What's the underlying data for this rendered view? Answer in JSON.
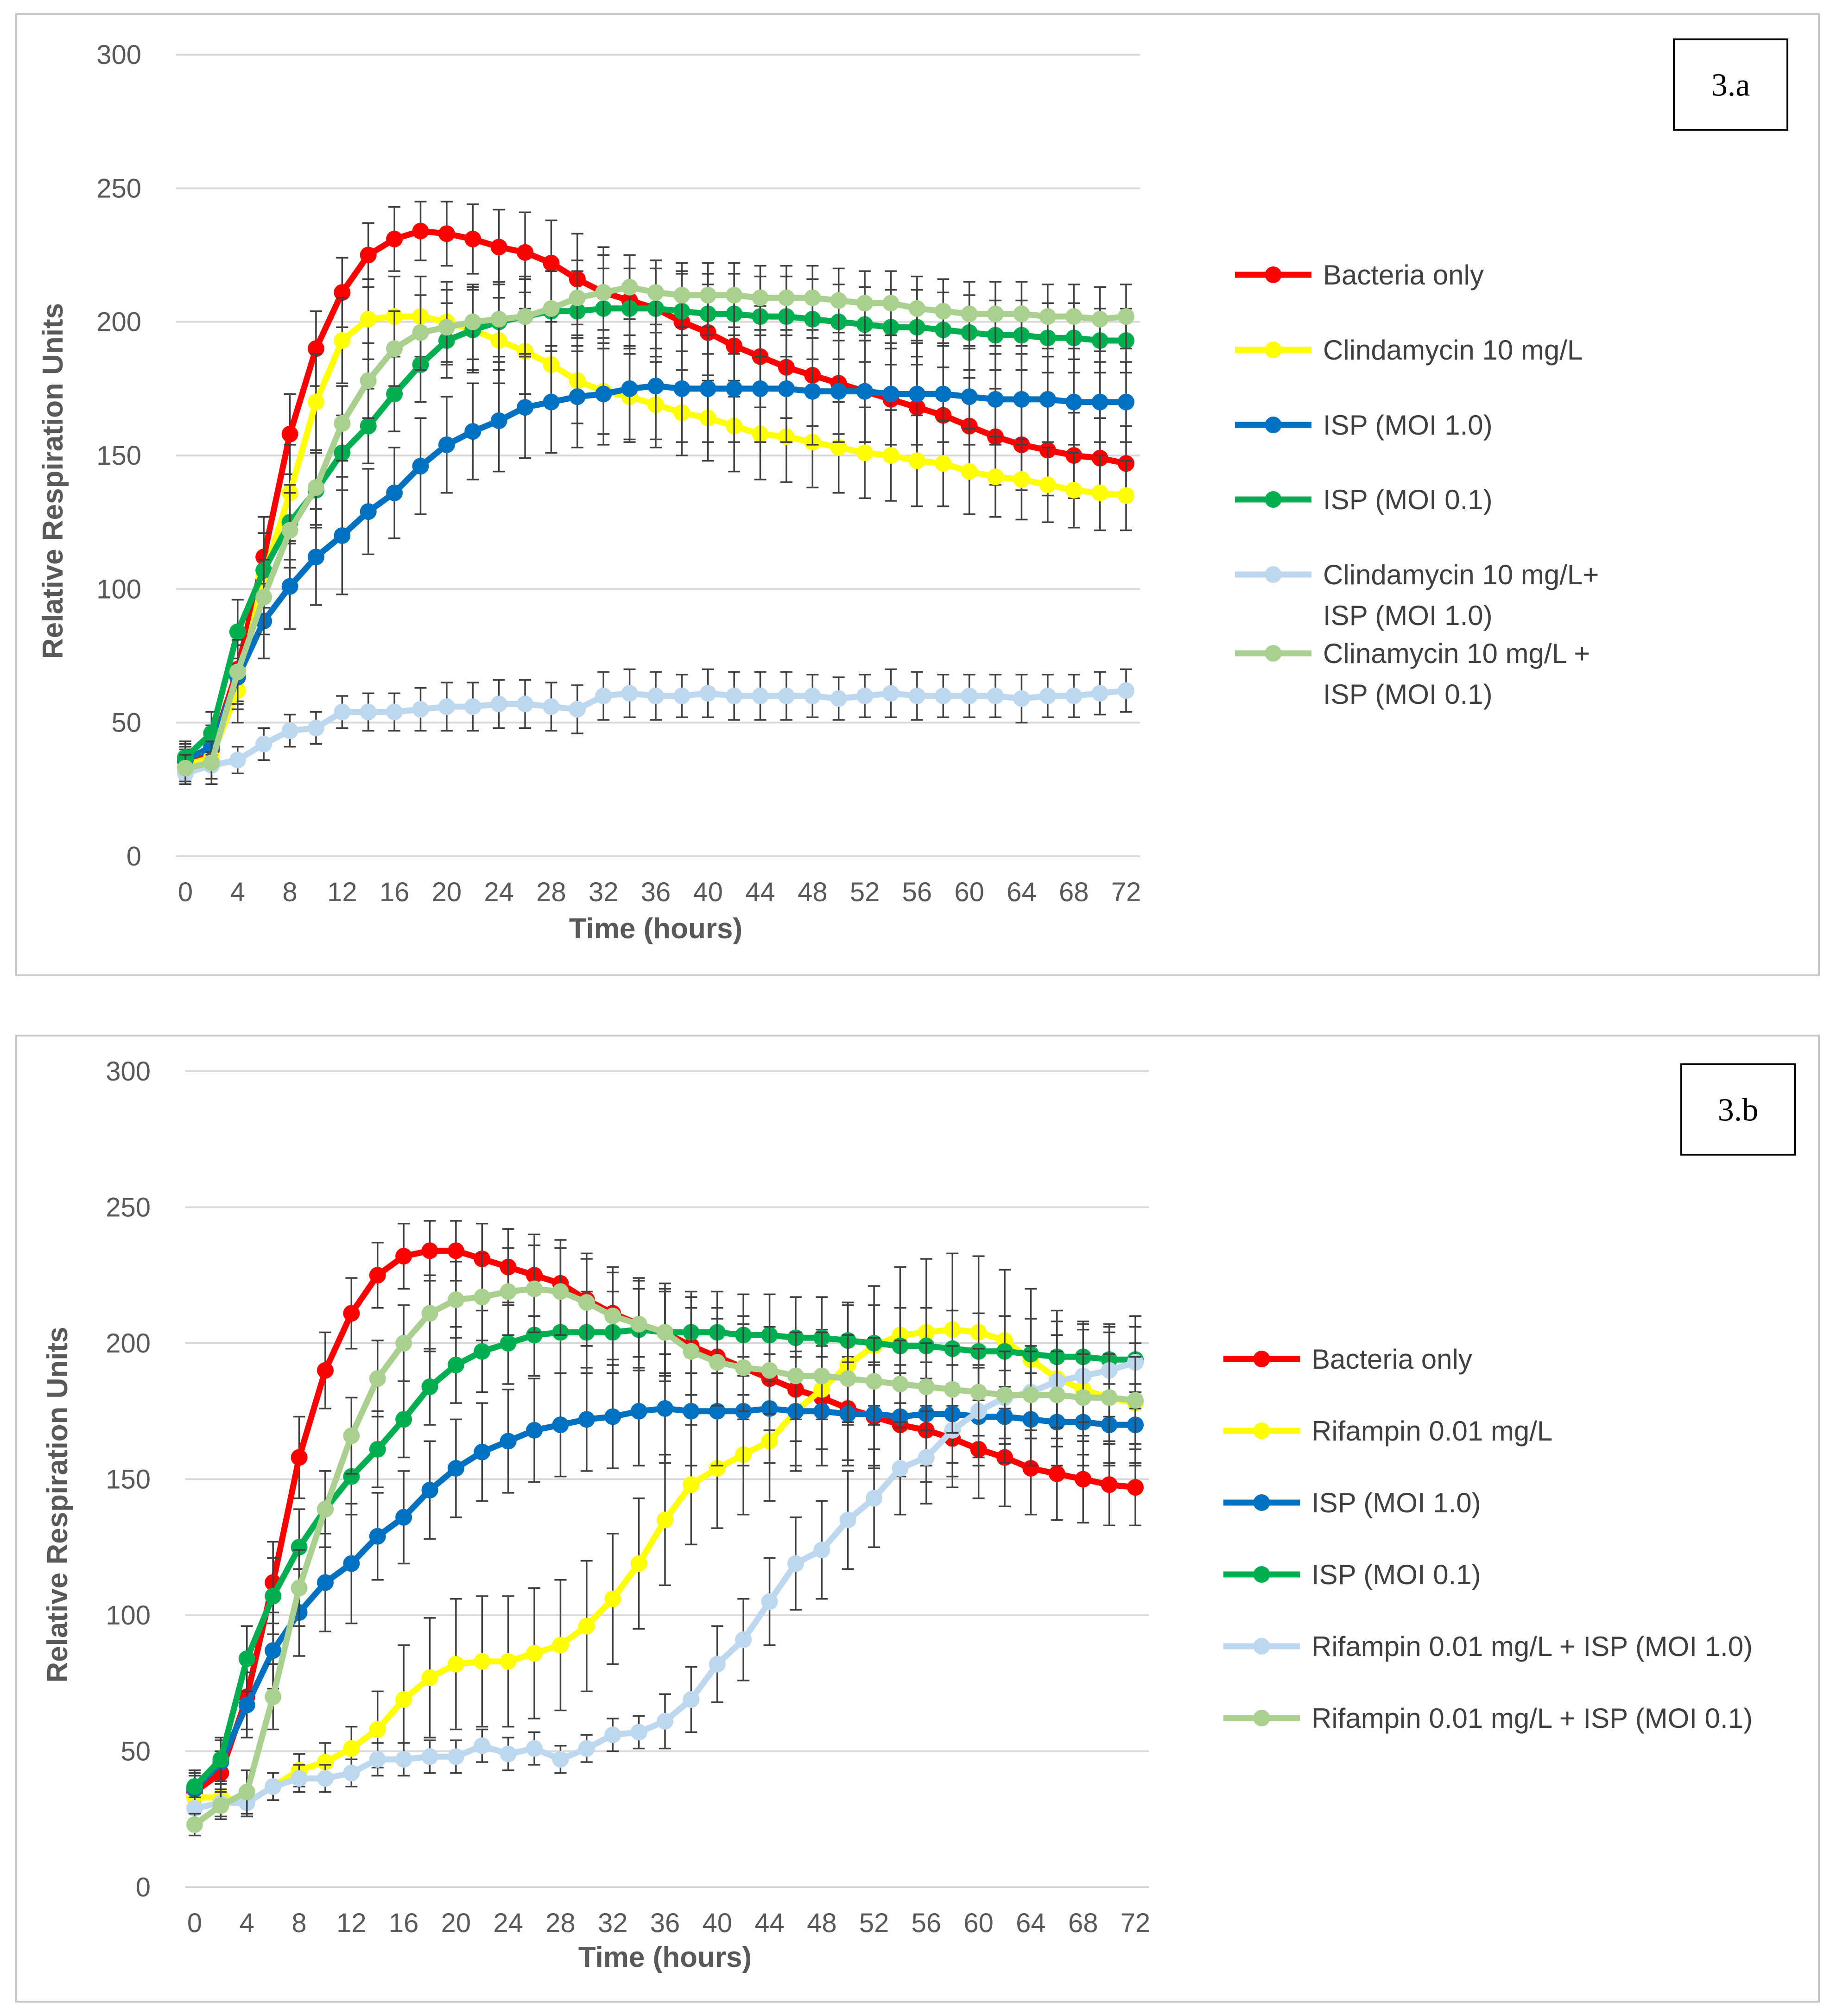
{
  "chart_data": [
    {
      "type": "line",
      "panel_label": "3.a",
      "xlabel": "Time (hours)",
      "ylabel": "Relative Respiration Units",
      "ylim": [
        0,
        300
      ],
      "yticks": [
        0,
        50,
        100,
        150,
        200,
        250,
        300
      ],
      "xticks": [
        0,
        4,
        8,
        12,
        16,
        20,
        24,
        28,
        32,
        36,
        40,
        44,
        48,
        52,
        56,
        60,
        64,
        68,
        72
      ],
      "xlim": [
        0,
        72
      ],
      "grid": "horizontal",
      "legend": "right",
      "x": [
        0,
        2,
        4,
        6,
        8,
        10,
        12,
        14,
        16,
        18,
        20,
        22,
        24,
        26,
        28,
        30,
        32,
        34,
        36,
        38,
        40,
        42,
        44,
        46,
        48,
        50,
        52,
        54,
        56,
        58,
        60,
        62,
        64,
        66,
        68,
        70,
        72
      ],
      "series": [
        {
          "name": "Bacteria only",
          "color": "#ff0000",
          "values": [
            35,
            40,
            70,
            112,
            158,
            190,
            211,
            225,
            231,
            234,
            233,
            231,
            228,
            226,
            222,
            216,
            211,
            208,
            205,
            200,
            196,
            191,
            187,
            183,
            180,
            177,
            174,
            171,
            168,
            165,
            161,
            157,
            154,
            152,
            150,
            149,
            147
          ],
          "errors": [
            6,
            8,
            12,
            15,
            15,
            14,
            13,
            12,
            12,
            11,
            12,
            13,
            14,
            15,
            16,
            17,
            17,
            17,
            18,
            18,
            18,
            19,
            19,
            19,
            19,
            19,
            19,
            19,
            19,
            18,
            18,
            18,
            17,
            17,
            16,
            15,
            14
          ]
        },
        {
          "name": "Clindamycin 10 mg/L",
          "color": "#ffff00",
          "values": [
            34,
            37,
            62,
            105,
            136,
            170,
            193,
            201,
            202,
            202,
            200,
            197,
            193,
            189,
            184,
            178,
            174,
            172,
            169,
            166,
            164,
            161,
            158,
            157,
            155,
            153,
            151,
            150,
            148,
            147,
            144,
            142,
            141,
            139,
            137,
            136,
            135
          ],
          "errors": [
            6,
            8,
            12,
            16,
            18,
            18,
            16,
            15,
            15,
            15,
            15,
            16,
            16,
            16,
            16,
            16,
            16,
            16,
            16,
            16,
            16,
            17,
            17,
            17,
            17,
            17,
            17,
            17,
            17,
            16,
            16,
            15,
            15,
            14,
            14,
            14,
            13
          ]
        },
        {
          "name": "ISP (MOI 1.0)",
          "color": "#0070c0",
          "values": [
            36,
            41,
            67,
            88,
            101,
            112,
            120,
            129,
            136,
            146,
            154,
            159,
            163,
            168,
            170,
            172,
            173,
            175,
            176,
            175,
            175,
            175,
            175,
            175,
            174,
            174,
            174,
            173,
            173,
            173,
            172,
            171,
            171,
            171,
            170,
            170,
            170
          ],
          "errors": [
            6,
            8,
            12,
            14,
            16,
            18,
            22,
            16,
            17,
            18,
            18,
            18,
            19,
            19,
            19,
            19,
            19,
            20,
            20,
            20,
            20,
            20,
            20,
            20,
            20,
            19,
            19,
            19,
            19,
            18,
            18,
            17,
            17,
            16,
            16,
            15,
            15
          ]
        },
        {
          "name": "ISP (MOI 0.1)",
          "color": "#00b050",
          "values": [
            37,
            46,
            84,
            107,
            125,
            137,
            151,
            161,
            173,
            184,
            193,
            197,
            200,
            202,
            204,
            204,
            205,
            205,
            205,
            204,
            203,
            203,
            202,
            202,
            201,
            200,
            199,
            198,
            198,
            197,
            196,
            195,
            195,
            194,
            194,
            193,
            193
          ],
          "errors": [
            6,
            8,
            12,
            14,
            14,
            14,
            14,
            14,
            14,
            14,
            14,
            15,
            15,
            15,
            15,
            15,
            15,
            15,
            15,
            15,
            15,
            15,
            15,
            15,
            15,
            14,
            14,
            14,
            14,
            14,
            14,
            13,
            13,
            13,
            13,
            12,
            12
          ]
        },
        {
          "name": "Clindamycin 10 mg/L+ ISP (MOI 1.0)",
          "color": "#bdd7ee",
          "values": [
            31,
            34,
            36,
            42,
            47,
            48,
            54,
            54,
            54,
            55,
            56,
            56,
            57,
            57,
            56,
            55,
            60,
            61,
            60,
            60,
            61,
            60,
            60,
            60,
            60,
            59,
            60,
            61,
            60,
            60,
            60,
            60,
            59,
            60,
            60,
            61,
            62
          ],
          "errors": [
            4,
            5,
            5,
            6,
            6,
            6,
            6,
            7,
            7,
            8,
            9,
            9,
            9,
            9,
            9,
            9,
            9,
            9,
            9,
            8,
            9,
            9,
            9,
            9,
            8,
            8,
            8,
            9,
            9,
            8,
            8,
            8,
            9,
            8,
            8,
            8,
            8
          ]
        },
        {
          "name": "Clinamycin 10 mg/L + ISP (MOI 0.1)",
          "color": "#a9d08e",
          "values": [
            33,
            35,
            69,
            97,
            122,
            138,
            162,
            178,
            190,
            196,
            198,
            200,
            201,
            202,
            205,
            209,
            211,
            213,
            211,
            210,
            210,
            210,
            209,
            209,
            209,
            208,
            207,
            207,
            205,
            204,
            203,
            203,
            203,
            202,
            202,
            201,
            202
          ],
          "errors": [
            5,
            8,
            12,
            14,
            14,
            14,
            14,
            14,
            14,
            14,
            14,
            14,
            14,
            14,
            14,
            14,
            14,
            12,
            12,
            12,
            12,
            12,
            12,
            12,
            12,
            12,
            12,
            12,
            12,
            12,
            12,
            12,
            12,
            12,
            12,
            12,
            12
          ]
        }
      ]
    },
    {
      "type": "line",
      "panel_label": "3.b",
      "xlabel": "Time (hours)",
      "ylabel": "Relative Respiration Units",
      "ylim": [
        0,
        300
      ],
      "yticks": [
        0,
        50,
        100,
        150,
        200,
        250,
        300
      ],
      "xticks": [
        0,
        4,
        8,
        12,
        16,
        20,
        24,
        28,
        32,
        36,
        40,
        44,
        48,
        52,
        56,
        60,
        64,
        68,
        72
      ],
      "xlim": [
        0,
        72
      ],
      "grid": "horizontal",
      "legend": "right",
      "x": [
        0,
        2,
        4,
        6,
        8,
        10,
        12,
        14,
        16,
        18,
        20,
        22,
        24,
        26,
        28,
        30,
        32,
        34,
        36,
        38,
        40,
        42,
        44,
        46,
        48,
        50,
        52,
        54,
        56,
        58,
        60,
        62,
        64,
        66,
        68,
        70,
        72
      ],
      "series": [
        {
          "name": "Bacteria only",
          "color": "#ff0000",
          "values": [
            35,
            42,
            70,
            112,
            158,
            190,
            211,
            225,
            232,
            234,
            234,
            231,
            228,
            225,
            222,
            216,
            211,
            207,
            204,
            199,
            195,
            191,
            187,
            183,
            180,
            176,
            173,
            170,
            168,
            165,
            161,
            158,
            154,
            152,
            150,
            148,
            147
          ],
          "errors": [
            6,
            8,
            12,
            15,
            15,
            14,
            13,
            12,
            12,
            11,
            11,
            13,
            14,
            15,
            16,
            17,
            17,
            17,
            18,
            18,
            18,
            19,
            19,
            19,
            19,
            19,
            19,
            19,
            19,
            18,
            18,
            18,
            17,
            17,
            16,
            15,
            14
          ]
        },
        {
          "name": "Rifampin 0.01 mg/L",
          "color": "#ffff00",
          "values": [
            33,
            33,
            31,
            37,
            43,
            46,
            51,
            58,
            69,
            77,
            82,
            83,
            83,
            86,
            89,
            96,
            106,
            119,
            135,
            148,
            154,
            159,
            164,
            175,
            183,
            192,
            199,
            203,
            204,
            205,
            204,
            201,
            194,
            187,
            183,
            180,
            178
          ],
          "errors": [
            4,
            5,
            5,
            5,
            6,
            7,
            8,
            14,
            20,
            22,
            24,
            24,
            24,
            24,
            24,
            24,
            24,
            24,
            24,
            22,
            22,
            22,
            22,
            22,
            22,
            22,
            22,
            25,
            27,
            28,
            28,
            26,
            26,
            25,
            24,
            24,
            22
          ]
        },
        {
          "name": "ISP (MOI 1.0)",
          "color": "#0070c0",
          "values": [
            36,
            46,
            67,
            87,
            101,
            112,
            119,
            129,
            136,
            146,
            154,
            160,
            164,
            168,
            170,
            172,
            173,
            175,
            176,
            175,
            175,
            175,
            176,
            175,
            175,
            174,
            174,
            173,
            174,
            174,
            173,
            173,
            172,
            171,
            171,
            170,
            170
          ],
          "errors": [
            6,
            8,
            12,
            14,
            16,
            18,
            22,
            16,
            17,
            18,
            18,
            18,
            19,
            19,
            19,
            19,
            19,
            20,
            20,
            20,
            20,
            20,
            20,
            20,
            20,
            19,
            19,
            19,
            19,
            18,
            18,
            17,
            17,
            16,
            16,
            15,
            15
          ]
        },
        {
          "name": "ISP (MOI 0.1)",
          "color": "#00b050",
          "values": [
            37,
            47,
            84,
            107,
            125,
            139,
            151,
            161,
            172,
            184,
            192,
            197,
            200,
            203,
            204,
            204,
            204,
            205,
            204,
            204,
            204,
            203,
            203,
            202,
            202,
            201,
            200,
            199,
            199,
            198,
            197,
            197,
            196,
            195,
            195,
            194,
            194
          ],
          "errors": [
            6,
            8,
            12,
            14,
            14,
            14,
            14,
            14,
            14,
            14,
            14,
            15,
            15,
            15,
            15,
            15,
            15,
            15,
            15,
            15,
            15,
            15,
            15,
            15,
            15,
            14,
            14,
            14,
            14,
            14,
            14,
            13,
            13,
            13,
            13,
            12,
            12
          ]
        },
        {
          "name": "Rifampin 0.01 mg/L + ISP (MOI 1.0)",
          "color": "#bdd7ee",
          "values": [
            29,
            31,
            31,
            37,
            40,
            40,
            42,
            47,
            47,
            48,
            48,
            52,
            49,
            51,
            47,
            51,
            56,
            57,
            61,
            69,
            82,
            91,
            105,
            119,
            124,
            135,
            143,
            154,
            158,
            168,
            175,
            180,
            182,
            186,
            188,
            190,
            193
          ],
          "errors": [
            4,
            5,
            5,
            5,
            5,
            5,
            5,
            6,
            6,
            6,
            6,
            6,
            6,
            6,
            5,
            5,
            6,
            6,
            10,
            12,
            14,
            15,
            16,
            17,
            18,
            18,
            18,
            17,
            17,
            17,
            17,
            17,
            17,
            17,
            17,
            17,
            17
          ]
        },
        {
          "name": "Rifampin 0.01 mg/L + ISP (MOI 0.1)",
          "color": "#a9d08e",
          "values": [
            23,
            30,
            35,
            70,
            110,
            139,
            166,
            187,
            200,
            211,
            216,
            217,
            219,
            220,
            219,
            215,
            210,
            207,
            204,
            197,
            193,
            191,
            190,
            188,
            188,
            187,
            186,
            185,
            184,
            183,
            182,
            181,
            181,
            181,
            180,
            180,
            179
          ],
          "errors": [
            4,
            5,
            8,
            12,
            14,
            14,
            14,
            14,
            14,
            14,
            14,
            16,
            16,
            16,
            16,
            16,
            16,
            16,
            16,
            16,
            16,
            16,
            16,
            16,
            16,
            16,
            16,
            16,
            16,
            16,
            16,
            16,
            16,
            16,
            16,
            16,
            16
          ]
        }
      ]
    }
  ]
}
